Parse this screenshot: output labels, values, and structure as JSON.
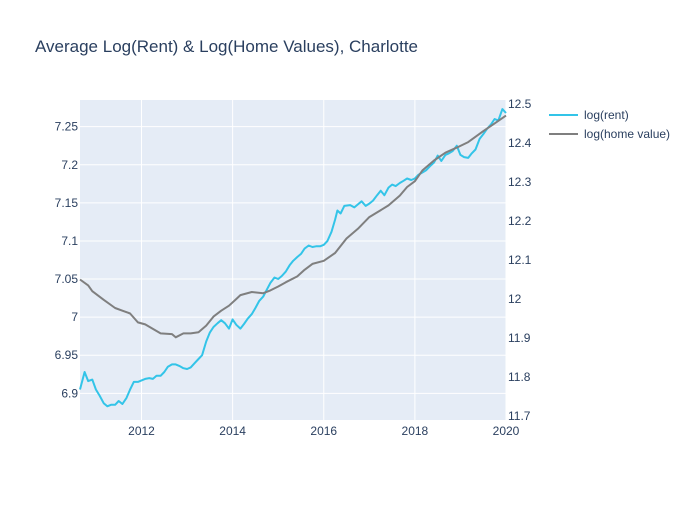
{
  "chart_data": {
    "type": "line",
    "title": "Average Log(Rent) & Log(Home Values), Charlotte",
    "xlabel": "",
    "ylabel": "",
    "y2label": "",
    "xlim": [
      2010.65,
      2020.0
    ],
    "ylim": [
      6.865,
      7.285
    ],
    "y2lim": [
      11.69,
      12.51
    ],
    "grid": true,
    "legend_position": "top-right-outside",
    "x_ticks": [
      {
        "value": 2012,
        "label": "2012"
      },
      {
        "value": 2014,
        "label": "2014"
      },
      {
        "value": 2016,
        "label": "2016"
      },
      {
        "value": 2018,
        "label": "2018"
      },
      {
        "value": 2020,
        "label": "2020"
      }
    ],
    "y_ticks": [
      {
        "value": 6.9,
        "label": "6.9"
      },
      {
        "value": 6.95,
        "label": "6.95"
      },
      {
        "value": 7.0,
        "label": "7"
      },
      {
        "value": 7.05,
        "label": "7.05"
      },
      {
        "value": 7.1,
        "label": "7.1"
      },
      {
        "value": 7.15,
        "label": "7.15"
      },
      {
        "value": 7.2,
        "label": "7.2"
      },
      {
        "value": 7.25,
        "label": "7.25"
      }
    ],
    "y2_ticks": [
      {
        "value": 11.7,
        "label": "11.7"
      },
      {
        "value": 11.8,
        "label": "11.8"
      },
      {
        "value": 11.9,
        "label": "11.9"
      },
      {
        "value": 12.0,
        "label": "12"
      },
      {
        "value": 12.1,
        "label": "12.1"
      },
      {
        "value": 12.2,
        "label": "12.2"
      },
      {
        "value": 12.3,
        "label": "12.3"
      },
      {
        "value": 12.4,
        "label": "12.4"
      },
      {
        "value": 12.5,
        "label": "12.5"
      }
    ],
    "series": [
      {
        "name": "log(rent)",
        "axis": "y",
        "color": "#33c4e8",
        "points": [
          [
            2010.65,
            6.905
          ],
          [
            2010.75,
            6.928
          ],
          [
            2010.83,
            6.916
          ],
          [
            2010.92,
            6.918
          ],
          [
            2011.0,
            6.905
          ],
          [
            2011.08,
            6.897
          ],
          [
            2011.17,
            6.887
          ],
          [
            2011.25,
            6.883
          ],
          [
            2011.33,
            6.885
          ],
          [
            2011.42,
            6.885
          ],
          [
            2011.5,
            6.89
          ],
          [
            2011.58,
            6.886
          ],
          [
            2011.67,
            6.894
          ],
          [
            2011.75,
            6.905
          ],
          [
            2011.83,
            6.915
          ],
          [
            2011.92,
            6.915
          ],
          [
            2012.0,
            6.917
          ],
          [
            2012.08,
            6.919
          ],
          [
            2012.17,
            6.92
          ],
          [
            2012.25,
            6.919
          ],
          [
            2012.33,
            6.923
          ],
          [
            2012.42,
            6.923
          ],
          [
            2012.5,
            6.928
          ],
          [
            2012.58,
            6.935
          ],
          [
            2012.67,
            6.938
          ],
          [
            2012.75,
            6.938
          ],
          [
            2012.83,
            6.936
          ],
          [
            2012.92,
            6.933
          ],
          [
            2013.0,
            6.932
          ],
          [
            2013.08,
            6.934
          ],
          [
            2013.17,
            6.94
          ],
          [
            2013.25,
            6.945
          ],
          [
            2013.33,
            6.95
          ],
          [
            2013.42,
            6.968
          ],
          [
            2013.5,
            6.98
          ],
          [
            2013.58,
            6.987
          ],
          [
            2013.67,
            6.992
          ],
          [
            2013.75,
            6.996
          ],
          [
            2013.83,
            6.992
          ],
          [
            2013.92,
            6.985
          ],
          [
            2014.0,
            6.997
          ],
          [
            2014.08,
            6.99
          ],
          [
            2014.17,
            6.985
          ],
          [
            2014.25,
            6.991
          ],
          [
            2014.33,
            6.998
          ],
          [
            2014.42,
            7.004
          ],
          [
            2014.5,
            7.012
          ],
          [
            2014.58,
            7.021
          ],
          [
            2014.67,
            7.027
          ],
          [
            2014.75,
            7.036
          ],
          [
            2014.83,
            7.045
          ],
          [
            2014.92,
            7.052
          ],
          [
            2015.0,
            7.05
          ],
          [
            2015.08,
            7.054
          ],
          [
            2015.17,
            7.06
          ],
          [
            2015.25,
            7.068
          ],
          [
            2015.33,
            7.074
          ],
          [
            2015.42,
            7.079
          ],
          [
            2015.5,
            7.083
          ],
          [
            2015.58,
            7.09
          ],
          [
            2015.67,
            7.094
          ],
          [
            2015.75,
            7.092
          ],
          [
            2015.83,
            7.093
          ],
          [
            2015.92,
            7.093
          ],
          [
            2016.0,
            7.095
          ],
          [
            2016.08,
            7.1
          ],
          [
            2016.17,
            7.112
          ],
          [
            2016.25,
            7.128
          ],
          [
            2016.3,
            7.14
          ],
          [
            2016.37,
            7.136
          ],
          [
            2016.45,
            7.146
          ],
          [
            2016.58,
            7.147
          ],
          [
            2016.67,
            7.144
          ],
          [
            2016.75,
            7.148
          ],
          [
            2016.83,
            7.152
          ],
          [
            2016.92,
            7.146
          ],
          [
            2017.0,
            7.149
          ],
          [
            2017.08,
            7.153
          ],
          [
            2017.17,
            7.16
          ],
          [
            2017.25,
            7.166
          ],
          [
            2017.33,
            7.16
          ],
          [
            2017.42,
            7.17
          ],
          [
            2017.5,
            7.174
          ],
          [
            2017.58,
            7.172
          ],
          [
            2017.67,
            7.176
          ],
          [
            2017.75,
            7.179
          ],
          [
            2017.83,
            7.182
          ],
          [
            2017.92,
            7.18
          ],
          [
            2018.0,
            7.182
          ],
          [
            2018.08,
            7.187
          ],
          [
            2018.17,
            7.19
          ],
          [
            2018.25,
            7.193
          ],
          [
            2018.33,
            7.198
          ],
          [
            2018.42,
            7.203
          ],
          [
            2018.5,
            7.212
          ],
          [
            2018.58,
            7.205
          ],
          [
            2018.67,
            7.213
          ],
          [
            2018.75,
            7.215
          ],
          [
            2018.83,
            7.218
          ],
          [
            2018.92,
            7.225
          ],
          [
            2019.0,
            7.213
          ],
          [
            2019.08,
            7.21
          ],
          [
            2019.17,
            7.209
          ],
          [
            2019.25,
            7.215
          ],
          [
            2019.33,
            7.22
          ],
          [
            2019.42,
            7.234
          ],
          [
            2019.5,
            7.24
          ],
          [
            2019.58,
            7.247
          ],
          [
            2019.67,
            7.253
          ],
          [
            2019.75,
            7.26
          ],
          [
            2019.83,
            7.258
          ],
          [
            2019.92,
            7.273
          ],
          [
            2020.0,
            7.268
          ]
        ]
      },
      {
        "name": "log(home value)",
        "axis": "y2",
        "color": "#7f7f7f",
        "points": [
          [
            2010.65,
            12.05
          ],
          [
            2010.83,
            12.035
          ],
          [
            2010.92,
            12.02
          ],
          [
            2011.17,
            11.998
          ],
          [
            2011.42,
            11.977
          ],
          [
            2011.58,
            11.97
          ],
          [
            2011.75,
            11.963
          ],
          [
            2011.92,
            11.94
          ],
          [
            2012.08,
            11.935
          ],
          [
            2012.42,
            11.912
          ],
          [
            2012.67,
            11.91
          ],
          [
            2012.75,
            11.902
          ],
          [
            2012.92,
            11.912
          ],
          [
            2013.08,
            11.912
          ],
          [
            2013.25,
            11.915
          ],
          [
            2013.42,
            11.932
          ],
          [
            2013.58,
            11.955
          ],
          [
            2013.75,
            11.97
          ],
          [
            2013.92,
            11.983
          ],
          [
            2014.08,
            12.0
          ],
          [
            2014.17,
            12.01
          ],
          [
            2014.42,
            12.018
          ],
          [
            2014.67,
            12.015
          ],
          [
            2014.83,
            12.022
          ],
          [
            2015.0,
            12.032
          ],
          [
            2015.17,
            12.043
          ],
          [
            2015.42,
            12.058
          ],
          [
            2015.58,
            12.075
          ],
          [
            2015.75,
            12.09
          ],
          [
            2016.0,
            12.098
          ],
          [
            2016.25,
            12.118
          ],
          [
            2016.5,
            12.155
          ],
          [
            2016.75,
            12.18
          ],
          [
            2017.0,
            12.21
          ],
          [
            2017.17,
            12.222
          ],
          [
            2017.42,
            12.24
          ],
          [
            2017.67,
            12.265
          ],
          [
            2017.83,
            12.287
          ],
          [
            2018.0,
            12.302
          ],
          [
            2018.17,
            12.33
          ],
          [
            2018.42,
            12.355
          ],
          [
            2018.67,
            12.375
          ],
          [
            2018.92,
            12.388
          ],
          [
            2019.17,
            12.402
          ],
          [
            2019.5,
            12.43
          ],
          [
            2019.75,
            12.45
          ],
          [
            2020.0,
            12.47
          ]
        ]
      }
    ]
  }
}
